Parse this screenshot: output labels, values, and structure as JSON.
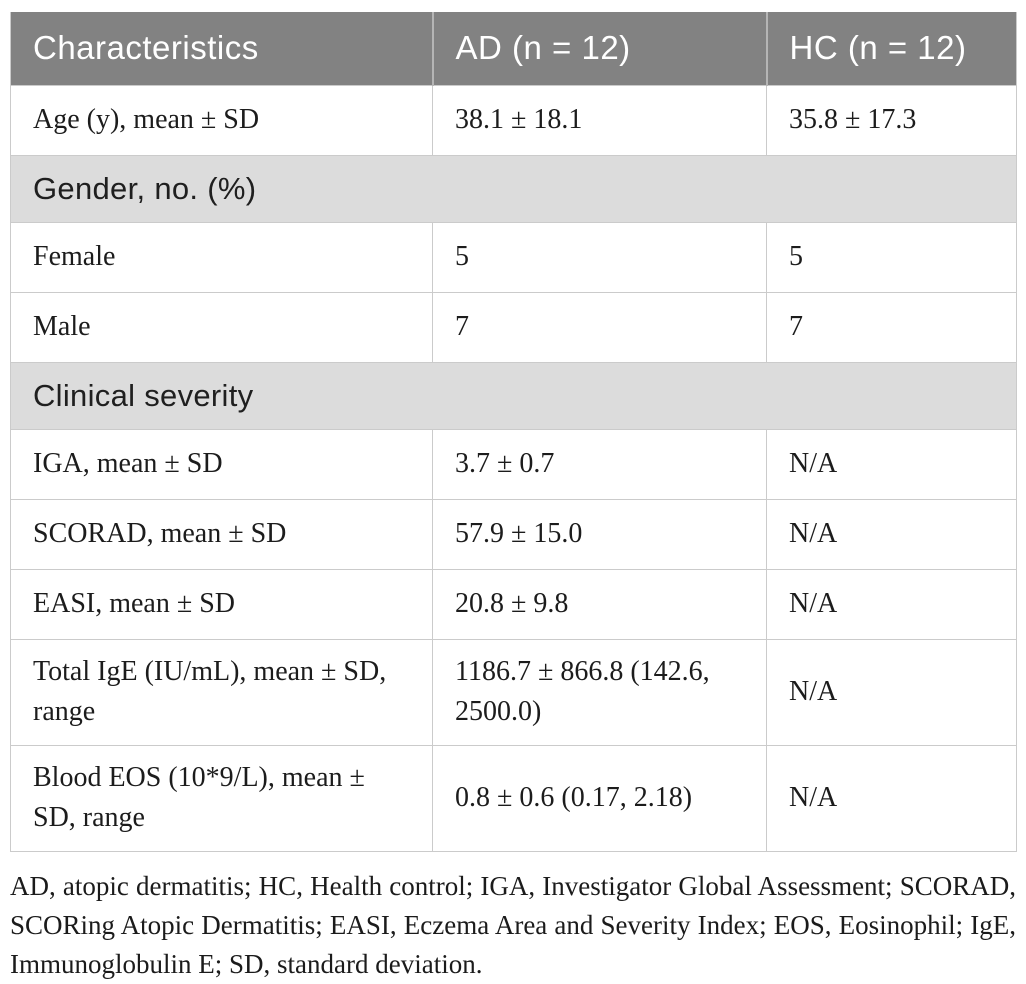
{
  "colors": {
    "header_bg": "#828282",
    "header_text": "#ffffff",
    "header_divider": "#b5b5b5",
    "section_bg": "#dcdcdc",
    "body_text": "#1c1c1c",
    "border": "#cbcbcb"
  },
  "table": {
    "header": [
      "Characteristics",
      "AD (n = 12)",
      "HC (n = 12)"
    ],
    "rows": [
      {
        "type": "data",
        "cells": [
          "Age (y), mean ± SD",
          "38.1 ± 18.1",
          "35.8 ± 17.3"
        ]
      },
      {
        "type": "section",
        "label": "Gender, no. (%)"
      },
      {
        "type": "data",
        "cells": [
          "Female",
          "5",
          "5"
        ]
      },
      {
        "type": "data",
        "cells": [
          "Male",
          "7",
          "7"
        ]
      },
      {
        "type": "section",
        "label": "Clinical severity"
      },
      {
        "type": "data",
        "cells": [
          "IGA, mean ± SD",
          "3.7 ± 0.7",
          "N/A"
        ]
      },
      {
        "type": "data",
        "cells": [
          "SCORAD, mean ± SD",
          "57.9 ± 15.0",
          "N/A"
        ]
      },
      {
        "type": "data",
        "cells": [
          "EASI, mean ± SD",
          "20.8 ± 9.8",
          "N/A"
        ]
      },
      {
        "type": "data",
        "cells": [
          "Total IgE (IU/mL), mean ± SD, range",
          "1186.7 ± 866.8 (142.6, 2500.0)",
          "N/A"
        ]
      },
      {
        "type": "data",
        "cells": [
          "Blood EOS (10*9/L), mean ± SD, range",
          "0.8 ± 0.6 (0.17, 2.18)",
          "N/A"
        ]
      }
    ]
  },
  "footnote": "AD, atopic dermatitis; HC, Health control; IGA, Investigator Global Assessment; SCORAD, SCORing Atopic Dermatitis; EASI, Eczema Area and Severity Index; EOS, Eosinophil; IgE, Immunoglobulin E; SD, standard deviation."
}
